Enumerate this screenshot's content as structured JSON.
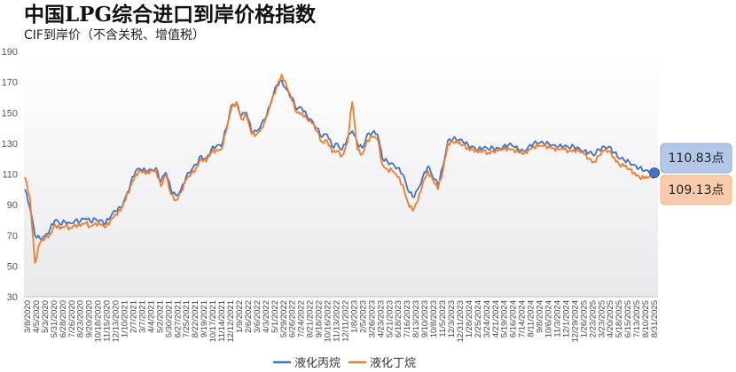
{
  "chart_data": {
    "type": "line",
    "title": "中国LPG综合进口到岸价格指数",
    "subtitle": "CIF到岸价（不含关税、增值税）",
    "ylim": [
      30,
      190
    ],
    "yticks": [
      30,
      50,
      70,
      90,
      110,
      130,
      150,
      170,
      190
    ],
    "grid": false,
    "legend_position": "bottom",
    "xticks": [
      "3/8/2020",
      "4/5/2020",
      "5/3/2020",
      "5/31/2020",
      "6/28/2020",
      "7/26/2020",
      "8/23/2020",
      "9/20/2020",
      "10/18/2020",
      "11/15/2020",
      "12/13/2020",
      "1/10/2021",
      "2/7/2021",
      "3/7/2021",
      "4/4/2021",
      "5/2/2021",
      "5/30/2021",
      "6/27/2021",
      "7/25/2021",
      "8/22/2021",
      "9/19/2021",
      "10/17/2021",
      "11/14/2021",
      "12/12/2021",
      "1/9/2022",
      "2/6/2022",
      "3/6/2022",
      "4/3/2022",
      "5/1/2022",
      "5/29/2022",
      "6/26/2022",
      "7/24/2022",
      "8/21/2022",
      "9/18/2022",
      "10/16/2022",
      "11/13/2022",
      "12/11/2022",
      "1/8/2023",
      "2/5/2023",
      "3/26/2023",
      "4/23/2023",
      "5/21/2023",
      "6/18/2023",
      "7/16/2023",
      "8/13/2023",
      "9/10/2023",
      "10/8/2023",
      "11/5/2023",
      "12/3/2023",
      "12/31/2023",
      "1/28/2024",
      "2/25/2024",
      "3/24/2024",
      "4/21/2024",
      "5/19/2024",
      "6/16/2024",
      "7/14/2024",
      "8/11/2024",
      "9/8/2024",
      "10/6/2024",
      "11/3/2024",
      "12/1/2024",
      "12/29/2024",
      "1/26/2025",
      "2/23/2025",
      "3/23/2025",
      "4/20/2025",
      "5/18/2025",
      "6/15/2025",
      "7/13/2025",
      "8/10/2025",
      "8/31/2025"
    ],
    "xticks_shown": [
      "3/8/2020",
      "4/5/2020",
      "5/3/2020",
      "5/31/2020",
      "6/28/2020",
      "7/26/2020",
      "8/23/2020",
      "9/20/2020",
      "10/18/2020",
      "11/15/2020",
      "12/13/2020",
      "1/10/2021",
      "2/7/2021",
      "3/7/2021",
      "4/4/2021",
      "5/2/2021",
      "5/30/2021",
      "6/27/2021",
      "7/25/2021",
      "8/22/2021",
      "9/19/2021",
      "10/17/2021",
      "11/14/2021",
      "12/12/2021",
      "1/9/2022",
      "2/6/2022",
      "3/6/2022",
      "4/3/2022",
      "5/1/2022",
      "5/29/2022",
      "6/26/2022",
      "7/24/2022",
      "8/21/2022",
      "9/18/2022",
      "10/16/2022",
      "11/13/2022",
      "12/11/2022",
      "1/8/2023",
      "2/5/2023",
      "3/26/2023",
      "4/23/2023",
      "5/21/2023",
      "6/18/2023",
      "7/16/2023",
      "8/13/2023",
      "9/10/2023",
      "10/8/2023",
      "11/5/2023",
      "12/3/2023",
      "12/31/2023",
      "1/28/2024",
      "2/25/2024",
      "3/24/2024",
      "4/21/2024",
      "5/19/2024",
      "6/16/2024",
      "7/14/2024",
      "8/11/2024",
      "9/8/2024",
      "10/6/2024",
      "11/3/2024",
      "12/1/2024",
      "12/29/2024",
      "1/26/2025",
      "2/23/2025",
      "3/23/2025",
      "4/20/2025",
      "5/18/2025",
      "6/15/2025",
      "7/13/2025",
      "8/10/2025",
      "8/31/2025"
    ],
    "series": [
      {
        "name": "液化丙烷",
        "color": "#4472C4",
        "values": [
          100,
          88,
          70,
          68,
          70,
          74,
          80,
          77,
          79,
          78,
          80,
          79,
          81,
          79,
          81,
          80,
          78,
          82,
          86,
          88,
          95,
          104,
          112,
          113,
          112,
          113,
          114,
          105,
          111,
          100,
          96,
          100,
          108,
          112,
          116,
          122,
          120,
          126,
          128,
          128,
          140,
          155,
          156,
          148,
          150,
          138,
          138,
          143,
          148,
          158,
          168,
          171,
          165,
          160,
          152,
          153,
          148,
          145,
          140,
          134,
          136,
          128,
          130,
          126,
          133,
          138,
          130,
          127,
          136,
          137,
          136,
          120,
          118,
          117,
          114,
          110,
          100,
          95,
          100,
          108,
          115,
          108,
          103,
          115,
          132,
          133,
          132,
          131,
          129,
          128,
          126,
          127,
          126,
          127,
          127,
          128,
          129,
          128,
          126,
          125,
          128,
          130,
          130,
          130,
          130,
          129,
          128,
          128,
          127,
          128,
          127,
          125,
          124,
          122,
          126,
          128,
          128,
          124,
          120,
          119,
          118,
          116,
          114,
          112,
          111,
          110.83
        ]
      },
      {
        "name": "液化丁烷",
        "color": "#ED7D31",
        "values": [
          108,
          95,
          52,
          65,
          68,
          71,
          77,
          74,
          76,
          75,
          77,
          76,
          78,
          76,
          78,
          77,
          75,
          80,
          84,
          86,
          93,
          102,
          110,
          112,
          110,
          112,
          113,
          102,
          109,
          97,
          93,
          98,
          106,
          110,
          114,
          120,
          118,
          124,
          126,
          126,
          138,
          153,
          157,
          146,
          148,
          136,
          136,
          140,
          147,
          157,
          167,
          175,
          167,
          158,
          150,
          150,
          146,
          143,
          138,
          131,
          132,
          124,
          125,
          122,
          130,
          157,
          126,
          123,
          132,
          134,
          133,
          116,
          113,
          112,
          108,
          103,
          92,
          86,
          92,
          104,
          112,
          106,
          100,
          112,
          130,
          131,
          130,
          129,
          127,
          126,
          124,
          125,
          124,
          125,
          125,
          126,
          127,
          126,
          124,
          123,
          126,
          128,
          128,
          128,
          128,
          127,
          126,
          126,
          125,
          126,
          125,
          123,
          120,
          118,
          122,
          125,
          125,
          121,
          116,
          115,
          113,
          111,
          108,
          107,
          108,
          109.13
        ]
      }
    ],
    "end_labels": [
      {
        "series": "液化丙烷",
        "value": 110.83,
        "text": "110.83点"
      },
      {
        "series": "液化丁烷",
        "value": 109.13,
        "text": "109.13点"
      }
    ]
  }
}
